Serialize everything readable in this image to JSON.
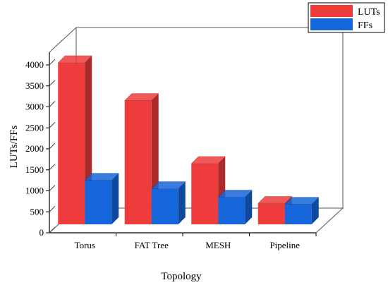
{
  "chart_data": {
    "type": "bar",
    "style": "3d",
    "categories": [
      "Torus",
      "FAT Tree",
      "MESH",
      "Pipeline"
    ],
    "series": [
      {
        "name": "LUTs",
        "values": [
          3850,
          2950,
          1450,
          500
        ],
        "color": "#EE3B3B"
      },
      {
        "name": "FFs",
        "values": [
          1050,
          850,
          650,
          480
        ],
        "color": "#1565DB"
      }
    ],
    "xlabel": "Topology",
    "ylabel": "LUTs/FFs",
    "ylim": [
      0,
      4000
    ],
    "yticks": [
      0,
      500,
      1000,
      1500,
      2000,
      2500,
      3000,
      3500,
      4000
    ],
    "grid": false,
    "legend": "top-right"
  }
}
